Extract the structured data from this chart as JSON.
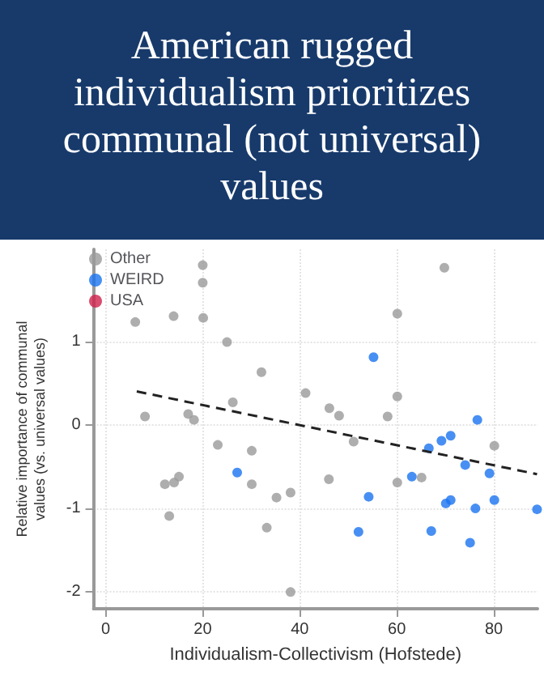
{
  "chart_data": {
    "type": "scatter",
    "title": "American rugged individualism prioritizes communal (not universal) values",
    "xlabel": "Individualism-Collectivism (Hofstede)",
    "ylabel": "Relative importance of communal values (vs. universal values)",
    "xlim": [
      -2.5,
      89
    ],
    "xticks": [
      0,
      20,
      40,
      60,
      80
    ],
    "ylim": [
      -2.2,
      2.1
    ],
    "yticks": [
      -2,
      -1,
      0,
      1
    ],
    "grid": true,
    "legend": "top left",
    "marker": "circle",
    "series": [
      {
        "name": "Other",
        "color": "#9a9a9a",
        "x": [
          6.1,
          14.0,
          20.1,
          60.1,
          25.0,
          32.1,
          8.1,
          26.2,
          41.2,
          46.1,
          48.1,
          58.1,
          60.1,
          17.0,
          18.2,
          23.1,
          30.1,
          51.1,
          80.1,
          12.2,
          14.1,
          15.1,
          30.1,
          35.2,
          38.1,
          46.0,
          60.1,
          65.1,
          13.1,
          33.2,
          38.1,
          20.0,
          20.0,
          69.8
        ],
        "values": [
          1.23,
          1.3,
          1.28,
          1.33,
          0.99,
          0.63,
          0.1,
          0.27,
          0.38,
          0.2,
          0.11,
          0.1,
          0.34,
          0.13,
          0.06,
          -0.24,
          -0.31,
          -0.2,
          -0.25,
          -0.71,
          -0.69,
          -0.62,
          -0.71,
          -0.87,
          -0.81,
          -0.65,
          -0.69,
          -0.63,
          -1.09,
          -1.23,
          -2.0,
          1.91,
          1.7,
          1.88
        ]
      },
      {
        "name": "WEIRD",
        "color": "#1a73f0",
        "x": [
          27.1,
          55.2,
          52.1,
          54.2,
          63.1,
          66.6,
          67.1,
          69.2,
          71.1,
          70.1,
          71.1,
          74.1,
          76.6,
          76.2,
          75.1,
          79.1,
          80.1,
          88.9
        ],
        "values": [
          -0.57,
          0.81,
          -1.28,
          -0.86,
          -0.62,
          -0.28,
          -1.27,
          -0.19,
          -0.13,
          -0.94,
          -0.9,
          -0.48,
          0.06,
          -1.0,
          -1.41,
          -0.58,
          -0.9,
          -1.01
        ]
      },
      {
        "name": "USA",
        "color": "#d0204a"
      },
      {
        "type": "line",
        "color": "#222222",
        "line_style": "dashed",
        "marker": "none",
        "x": [
          6.4,
          88.9
        ],
        "values": [
          0.4,
          -0.59
        ]
      }
    ]
  }
}
